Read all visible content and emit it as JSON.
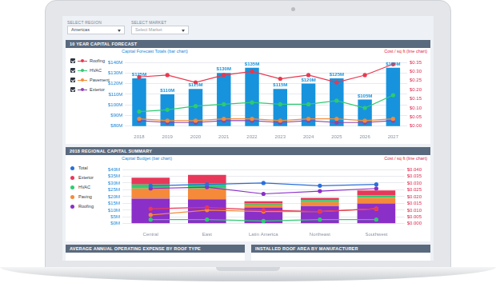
{
  "controls": [
    {
      "label": "SELECT REGION",
      "value": "Americas"
    },
    {
      "label": "SELECT MARKET",
      "value": "Select Market"
    }
  ],
  "chart_data": [
    {
      "type": "bar",
      "title": "10 YEAR CAPITAL FORECAST",
      "ylabel": "Capital Forecast Totals (bar chart)",
      "y2label": "Cost / sq ft (line chart)",
      "categories": [
        "2018",
        "2019",
        "2020",
        "2021",
        "2022",
        "2023",
        "2024",
        "2025",
        "2026",
        "2027"
      ],
      "values": [
        125,
        110,
        115,
        130,
        135,
        115,
        120,
        125,
        105,
        135
      ],
      "value_labels": [
        "$125M",
        "$110M",
        "$115M",
        "$130M",
        "$135M",
        "$115M",
        "$120M",
        "$125M",
        "$105M",
        "$135M"
      ],
      "color": "#1793dd",
      "data_labels": true,
      "series": [
        {
          "name": "Roofing",
          "type": "line",
          "axis": "y2",
          "color": "#e8384f",
          "marker": "circle",
          "values": [
            0.27,
            0.28,
            0.24,
            0.28,
            0.3,
            0.26,
            0.28,
            0.24,
            0.28,
            0.34
          ]
        },
        {
          "name": "HVAC",
          "type": "line",
          "axis": "y2",
          "color": "#2ecc71",
          "marker": "circle",
          "values": [
            0.08,
            0.09,
            0.11,
            0.12,
            0.13,
            0.12,
            0.12,
            0.14,
            0.1,
            0.17
          ]
        },
        {
          "name": "Pavement",
          "type": "line",
          "axis": "y2",
          "color": "#f28c38",
          "marker": "circle",
          "values": [
            0.04,
            0.03,
            0.03,
            0.04,
            0.04,
            0.03,
            0.04,
            0.04,
            0.03,
            0.04
          ]
        },
        {
          "name": "Exterior",
          "type": "line",
          "axis": "y2",
          "color": "#8e44ad",
          "marker": "circle",
          "values": [
            0.03,
            0.02,
            0.02,
            0.03,
            0.03,
            0.02,
            0.03,
            0.02,
            0.02,
            0.03
          ]
        }
      ],
      "ylim": [
        80,
        140
      ],
      "yticks": [
        {
          "value": 80,
          "label": "$80M"
        },
        {
          "value": 90,
          "label": "$90M"
        },
        {
          "value": 100,
          "label": "$100M"
        },
        {
          "value": 110,
          "label": "$110M"
        },
        {
          "value": 120,
          "label": "$120M"
        },
        {
          "value": 130,
          "label": "$130M"
        },
        {
          "value": 140,
          "label": "$140M"
        }
      ],
      "y2lim": [
        0,
        0.35
      ],
      "y2ticks": [
        {
          "value": 0,
          "label": "$0.00"
        },
        {
          "value": 0.05,
          "label": "$0.05"
        },
        {
          "value": 0.1,
          "label": "$0.10"
        },
        {
          "value": 0.15,
          "label": "$0.15"
        },
        {
          "value": 0.2,
          "label": "$0.20"
        },
        {
          "value": 0.25,
          "label": "$0.25"
        },
        {
          "value": 0.3,
          "label": "$0.30"
        },
        {
          "value": 0.35,
          "label": "$0.35"
        }
      ],
      "grid": true,
      "legend": "left"
    },
    {
      "type": "bar",
      "title": "2018 REGIONAL CAPITAL SUMMARY",
      "stacked": true,
      "ylabel": "Capital Budget (bar chart)",
      "y2label": "Cost / sq ft (line chart)",
      "categories": [
        "Central",
        "East",
        "Latin America",
        "Northeast",
        "Southwest"
      ],
      "series": [
        {
          "name": "Total",
          "type": "line",
          "axis": "y2",
          "color": "#2a6fdb",
          "marker": "circle",
          "values": [
            0.028,
            0.029,
            0.03,
            0.028,
            0.029
          ]
        },
        {
          "name": "Exterior",
          "type": "bar",
          "color": "#e8385a",
          "values": [
            5,
            6,
            1.5,
            1.5,
            3.5
          ]
        },
        {
          "name": "HVAC",
          "type": "bar",
          "color": "#2ecc71",
          "values": [
            3,
            4,
            1,
            1.5,
            2
          ]
        },
        {
          "name": "Paving",
          "type": "bar",
          "color": "#f58a3a",
          "values": [
            7.5,
            8,
            2,
            3,
            4
          ]
        },
        {
          "name": "Roofing",
          "type": "bar",
          "color": "#8b2fc9",
          "values": [
            18.5,
            18,
            12,
            13,
            15
          ]
        },
        {
          "name": "Exterior",
          "type": "line",
          "axis": "y2",
          "color": "#e8385a",
          "marker": "circle",
          "values": [
            0.011,
            0.012,
            0.01,
            0.009,
            0.011
          ]
        },
        {
          "name": "HVAC",
          "type": "line",
          "axis": "y2",
          "color": "#2ecc71",
          "marker": "circle",
          "values": [
            0.003,
            0.003,
            0.002,
            0.003,
            0.003
          ]
        },
        {
          "name": "Paving",
          "type": "line",
          "axis": "y2",
          "color": "#f58a3a",
          "marker": "circle",
          "values": [
            0.0065,
            0.01,
            0.009,
            0.009,
            0.011
          ]
        },
        {
          "name": "Roofing",
          "type": "line",
          "axis": "y2",
          "color": "#8b2fc9",
          "marker": "circle",
          "values": [
            0.026,
            0.027,
            0.022,
            0.024,
            0.026
          ]
        }
      ],
      "ylim": [
        0,
        40
      ],
      "yticks": [
        {
          "value": 0,
          "label": "$0M"
        },
        {
          "value": 5,
          "label": "$5M"
        },
        {
          "value": 10,
          "label": "$10M"
        },
        {
          "value": 15,
          "label": "$15M"
        },
        {
          "value": 20,
          "label": "$20M"
        },
        {
          "value": 25,
          "label": "$25M"
        },
        {
          "value": 30,
          "label": "$30M"
        },
        {
          "value": 35,
          "label": "$35M"
        },
        {
          "value": 40,
          "label": "$40M"
        }
      ],
      "y2lim": [
        0,
        0.04
      ],
      "y2ticks": [
        {
          "value": 0,
          "label": "$0.000"
        },
        {
          "value": 0.005,
          "label": "$0.005"
        },
        {
          "value": 0.01,
          "label": "$0.010"
        },
        {
          "value": 0.015,
          "label": "$0.015"
        },
        {
          "value": 0.02,
          "label": "$0.020"
        },
        {
          "value": 0.025,
          "label": "$0.025"
        },
        {
          "value": 0.03,
          "label": "$0.030"
        },
        {
          "value": 0.035,
          "label": "$0.035"
        },
        {
          "value": 0.04,
          "label": "$0.040"
        }
      ],
      "grid": true,
      "legend": "left"
    }
  ],
  "lower_panels": [
    "AVERAGE ANNUAL OPERATING EXPENSE BY ROOF TYPE",
    "INSTALLED ROOF AREA BY MANUFACTURER"
  ]
}
